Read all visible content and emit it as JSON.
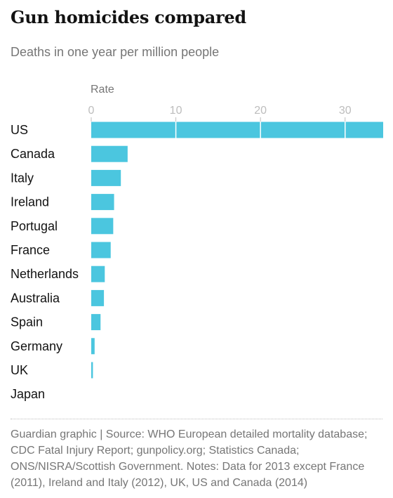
{
  "header": {
    "title": "Gun homicides compared",
    "subtitle": "Deaths in one year per million people"
  },
  "footer": {
    "source": "Guardian graphic | Source: WHO European detailed mortality database; CDC Fatal Injury Report; gunpolicy.org; Statistics Canada; ONS/NISRA/Scottish Government. Notes: Data for 2013 except France (2011), Ireland and Italy (2012), UK, US and Canada (2014)"
  },
  "chart_data": {
    "type": "bar",
    "orientation": "horizontal",
    "title": "Gun homicides compared",
    "subtitle": "Deaths in one year per million people",
    "xlabel": "Rate",
    "categories": [
      "US",
      "Canada",
      "Italy",
      "Ireland",
      "Portugal",
      "France",
      "Netherlands",
      "Australia",
      "Spain",
      "Germany",
      "UK",
      "Japan"
    ],
    "values": [
      34.5,
      4.3,
      3.5,
      2.7,
      2.6,
      2.3,
      1.6,
      1.5,
      1.1,
      0.4,
      0.2,
      0.0
    ],
    "xticks": [
      0,
      10,
      20,
      30
    ],
    "xlim": [
      0,
      34.5
    ],
    "color": "#4bc6df",
    "tick_color": "#bdbdbd",
    "label_color": "#121212",
    "grid": false
  }
}
